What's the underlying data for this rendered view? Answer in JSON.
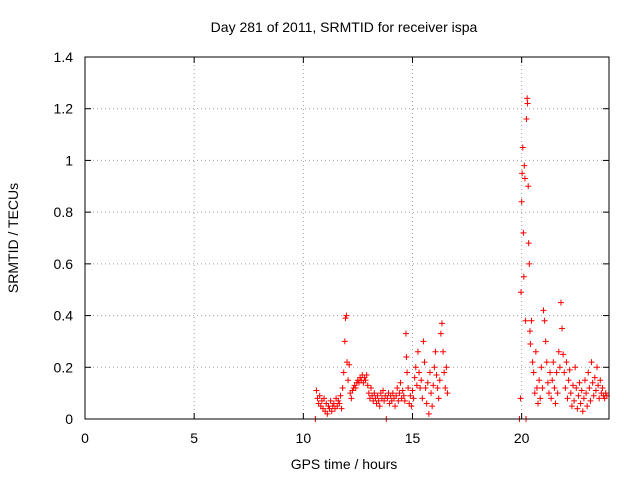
{
  "chart_data": {
    "type": "scatter",
    "title": "Day 281 of 2011, SRMTID for receiver ispa",
    "xlabel": "GPS time / hours",
    "ylabel": "SRMTID / TECUs",
    "xlim": [
      0,
      24
    ],
    "ylim": [
      0,
      1.4
    ],
    "xticks": [
      0,
      5,
      10,
      15,
      20
    ],
    "xtick_labels": [
      "0",
      "5",
      "10",
      "15",
      "20"
    ],
    "yticks": [
      0,
      0.2,
      0.4,
      0.6,
      0.8,
      1.0,
      1.2,
      1.4
    ],
    "ytick_labels": [
      "0",
      "0.2",
      "0.4",
      "0.6",
      "0.8",
      "1",
      "1.2",
      "1.4"
    ],
    "grid": true,
    "marker": "+",
    "color": "#ff0000",
    "series": [
      {
        "name": "SRMTID",
        "points": [
          [
            10.55,
            0.0
          ],
          [
            10.6,
            0.11
          ],
          [
            10.65,
            0.08
          ],
          [
            10.7,
            0.06
          ],
          [
            10.75,
            0.09
          ],
          [
            10.8,
            0.05
          ],
          [
            10.85,
            0.07
          ],
          [
            10.9,
            0.04
          ],
          [
            10.95,
            0.08
          ],
          [
            11.0,
            0.03
          ],
          [
            11.05,
            0.06
          ],
          [
            11.1,
            0.02
          ],
          [
            11.15,
            0.05
          ],
          [
            11.2,
            0.04
          ],
          [
            11.25,
            0.07
          ],
          [
            11.3,
            0.03
          ],
          [
            11.35,
            0.05
          ],
          [
            11.4,
            0.06
          ],
          [
            11.45,
            0.04
          ],
          [
            11.5,
            0.08
          ],
          [
            11.55,
            0.05
          ],
          [
            11.6,
            0.07
          ],
          [
            11.65,
            0.06
          ],
          [
            11.7,
            0.09
          ],
          [
            11.75,
            0.04
          ],
          [
            11.8,
            0.12
          ],
          [
            11.85,
            0.18
          ],
          [
            11.9,
            0.3
          ],
          [
            11.93,
            0.39
          ],
          [
            11.97,
            0.4
          ],
          [
            12.0,
            0.22
          ],
          [
            12.05,
            0.15
          ],
          [
            12.1,
            0.21
          ],
          [
            12.15,
            0.1
          ],
          [
            12.2,
            0.08
          ],
          [
            12.25,
            0.11
          ],
          [
            12.3,
            0.12
          ],
          [
            12.35,
            0.13
          ],
          [
            12.4,
            0.12
          ],
          [
            12.45,
            0.14
          ],
          [
            12.5,
            0.15
          ],
          [
            12.55,
            0.14
          ],
          [
            12.6,
            0.16
          ],
          [
            12.65,
            0.15
          ],
          [
            12.7,
            0.17
          ],
          [
            12.75,
            0.14
          ],
          [
            12.8,
            0.16
          ],
          [
            12.85,
            0.15
          ],
          [
            12.9,
            0.17
          ],
          [
            12.95,
            0.13
          ],
          [
            13.0,
            0.1
          ],
          [
            13.05,
            0.08
          ],
          [
            13.1,
            0.12
          ],
          [
            13.15,
            0.09
          ],
          [
            13.2,
            0.07
          ],
          [
            13.25,
            0.1
          ],
          [
            13.3,
            0.08
          ],
          [
            13.35,
            0.06
          ],
          [
            13.4,
            0.09
          ],
          [
            13.45,
            0.07
          ],
          [
            13.5,
            0.05
          ],
          [
            13.55,
            0.1
          ],
          [
            13.6,
            0.08
          ],
          [
            13.65,
            0.11
          ],
          [
            13.7,
            0.07
          ],
          [
            13.75,
            0.09
          ],
          [
            13.8,
            0.0
          ],
          [
            13.85,
            0.08
          ],
          [
            13.9,
            0.1
          ],
          [
            13.95,
            0.06
          ],
          [
            14.0,
            0.09
          ],
          [
            14.05,
            0.07
          ],
          [
            14.1,
            0.1
          ],
          [
            14.15,
            0.08
          ],
          [
            14.2,
            0.05
          ],
          [
            14.25,
            0.09
          ],
          [
            14.3,
            0.12
          ],
          [
            14.35,
            0.07
          ],
          [
            14.4,
            0.1
          ],
          [
            14.45,
            0.14
          ],
          [
            14.5,
            0.08
          ],
          [
            14.55,
            0.11
          ],
          [
            14.6,
            0.09
          ],
          [
            14.65,
            0.07
          ],
          [
            14.7,
            0.33
          ],
          [
            14.72,
            0.24
          ],
          [
            14.75,
            0.18
          ],
          [
            14.8,
            0.12
          ],
          [
            14.85,
            0.06
          ],
          [
            14.9,
            0.09
          ],
          [
            14.95,
            0.05
          ],
          [
            15.0,
            0.11
          ],
          [
            15.05,
            0.08
          ],
          [
            15.1,
            0.16
          ],
          [
            15.15,
            0.2
          ],
          [
            15.2,
            0.13
          ],
          [
            15.25,
            0.26
          ],
          [
            15.3,
            0.18
          ],
          [
            15.35,
            0.12
          ],
          [
            15.4,
            0.15
          ],
          [
            15.45,
            0.08
          ],
          [
            15.5,
            0.3
          ],
          [
            15.55,
            0.22
          ],
          [
            15.6,
            0.12
          ],
          [
            15.65,
            0.06
          ],
          [
            15.7,
            0.14
          ],
          [
            15.75,
            0.02
          ],
          [
            15.8,
            0.18
          ],
          [
            15.85,
            0.1
          ],
          [
            15.9,
            0.05
          ],
          [
            15.95,
            0.13
          ],
          [
            16.0,
            0.2
          ],
          [
            16.05,
            0.26
          ],
          [
            16.1,
            0.17
          ],
          [
            16.15,
            0.12
          ],
          [
            16.2,
            0.08
          ],
          [
            16.25,
            0.15
          ],
          [
            16.3,
            0.33
          ],
          [
            16.35,
            0.37
          ],
          [
            16.4,
            0.26
          ],
          [
            16.45,
            0.18
          ],
          [
            16.5,
            0.12
          ],
          [
            16.55,
            0.2
          ],
          [
            16.6,
            0.1
          ],
          [
            19.9,
            0.0
          ],
          [
            19.95,
            0.08
          ],
          [
            19.97,
            0.49
          ],
          [
            20.0,
            0.84
          ],
          [
            20.02,
            0.95
          ],
          [
            20.05,
            1.05
          ],
          [
            20.08,
            0.72
          ],
          [
            20.1,
            0.55
          ],
          [
            20.12,
            0.98
          ],
          [
            20.15,
            0.93
          ],
          [
            20.18,
            0.38
          ],
          [
            20.2,
            0.0
          ],
          [
            20.22,
            1.16
          ],
          [
            20.25,
            1.24
          ],
          [
            20.27,
            1.22
          ],
          [
            20.3,
            0.9
          ],
          [
            20.32,
            0.68
          ],
          [
            20.35,
            0.6
          ],
          [
            20.38,
            0.34
          ],
          [
            20.4,
            0.29
          ],
          [
            20.45,
            0.38
          ],
          [
            20.5,
            0.22
          ],
          [
            20.55,
            0.18
          ],
          [
            20.6,
            0.1
          ],
          [
            20.65,
            0.26
          ],
          [
            20.7,
            0.12
          ],
          [
            20.75,
            0.06
          ],
          [
            20.8,
            0.15
          ],
          [
            20.85,
            0.08
          ],
          [
            20.9,
            0.2
          ],
          [
            20.95,
            0.12
          ],
          [
            21.0,
            0.42
          ],
          [
            21.05,
            0.38
          ],
          [
            21.1,
            0.3
          ],
          [
            21.15,
            0.22
          ],
          [
            21.2,
            0.14
          ],
          [
            21.25,
            0.1
          ],
          [
            21.3,
            0.18
          ],
          [
            21.35,
            0.08
          ],
          [
            21.4,
            0.15
          ],
          [
            21.45,
            0.22
          ],
          [
            21.5,
            0.12
          ],
          [
            21.55,
            0.06
          ],
          [
            21.6,
            0.18
          ],
          [
            21.65,
            0.1
          ],
          [
            21.7,
            0.26
          ],
          [
            21.75,
            0.2
          ],
          [
            21.8,
            0.45
          ],
          [
            21.85,
            0.35
          ],
          [
            21.9,
            0.25
          ],
          [
            21.95,
            0.18
          ],
          [
            22.0,
            0.12
          ],
          [
            22.05,
            0.22
          ],
          [
            22.1,
            0.08
          ],
          [
            22.15,
            0.15
          ],
          [
            22.2,
            0.19
          ],
          [
            22.25,
            0.1
          ],
          [
            22.3,
            0.05
          ],
          [
            22.35,
            0.13
          ],
          [
            22.4,
            0.07
          ],
          [
            22.45,
            0.2
          ],
          [
            22.5,
            0.12
          ],
          [
            22.55,
            0.04
          ],
          [
            22.6,
            0.09
          ],
          [
            22.65,
            0.14
          ],
          [
            22.7,
            0.06
          ],
          [
            22.75,
            0.11
          ],
          [
            22.8,
            0.03
          ],
          [
            22.85,
            0.08
          ],
          [
            22.9,
            0.15
          ],
          [
            22.95,
            0.1
          ],
          [
            23.0,
            0.05
          ],
          [
            23.05,
            0.18
          ],
          [
            23.1,
            0.12
          ],
          [
            23.15,
            0.07
          ],
          [
            23.2,
            0.22
          ],
          [
            23.25,
            0.14
          ],
          [
            23.3,
            0.09
          ],
          [
            23.35,
            0.16
          ],
          [
            23.4,
            0.11
          ],
          [
            23.45,
            0.2
          ],
          [
            23.5,
            0.13
          ],
          [
            23.55,
            0.08
          ],
          [
            23.6,
            0.15
          ],
          [
            23.65,
            0.1
          ],
          [
            23.7,
            0.12
          ],
          [
            23.75,
            0.09
          ],
          [
            23.8,
            0.08
          ],
          [
            23.85,
            0.1
          ],
          [
            23.9,
            0.09
          ]
        ]
      }
    ]
  }
}
